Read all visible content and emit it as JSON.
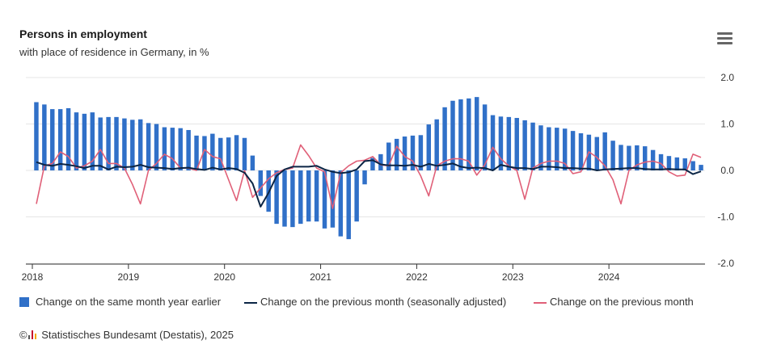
{
  "header": {
    "title": "Persons in employment",
    "subtitle": "with place of residence in Germany, in %"
  },
  "menu": {
    "icon": "hamburger-menu-icon"
  },
  "chart_data": {
    "type": "bar+line",
    "title": "Persons in employment",
    "subtitle": "with place of residence in Germany, in %",
    "ylim": [
      -2,
      2
    ],
    "yticks": [
      "2.0",
      "1.0",
      "0.0",
      "-1.0",
      "-2.0"
    ],
    "ytick_values": [
      2,
      1,
      0,
      -1,
      -2
    ],
    "xlabels": [
      "2018",
      "2019",
      "2020",
      "2021",
      "2022",
      "2023",
      "2024"
    ],
    "x_start": "2018-01",
    "months": 84,
    "series": [
      {
        "name": "Change on the same month year earlier",
        "type": "bar",
        "color": "#3070c8",
        "values": [
          1.47,
          1.42,
          1.32,
          1.32,
          1.34,
          1.25,
          1.22,
          1.25,
          1.14,
          1.15,
          1.15,
          1.12,
          1.09,
          1.1,
          1.02,
          1.0,
          0.93,
          0.92,
          0.91,
          0.87,
          0.75,
          0.74,
          0.79,
          0.7,
          0.71,
          0.76,
          0.7,
          0.32,
          -0.55,
          -0.89,
          -1.15,
          -1.21,
          -1.22,
          -1.15,
          -1.1,
          -1.1,
          -1.25,
          -1.23,
          -1.42,
          -1.48,
          -1.1,
          -0.3,
          0.27,
          0.35,
          0.6,
          0.68,
          0.73,
          0.75,
          0.76,
          0.99,
          1.1,
          1.36,
          1.5,
          1.53,
          1.55,
          1.58,
          1.42,
          1.19,
          1.16,
          1.15,
          1.13,
          1.08,
          1.03,
          0.97,
          0.93,
          0.92,
          0.9,
          0.85,
          0.8,
          0.77,
          0.72,
          0.82,
          0.64,
          0.55,
          0.53,
          0.54,
          0.52,
          0.44,
          0.35,
          0.31,
          0.28,
          0.26,
          0.2,
          0.12
        ]
      },
      {
        "name": "Change on the previous month (seasonally adjusted)",
        "type": "line",
        "color": "#0b2545",
        "values": [
          0.18,
          0.12,
          0.1,
          0.14,
          0.12,
          0.09,
          0.05,
          0.1,
          0.1,
          0.02,
          0.08,
          0.07,
          0.08,
          0.12,
          0.07,
          0.06,
          0.05,
          0.03,
          0.05,
          0.06,
          0.03,
          0.01,
          0.06,
          0.02,
          0.05,
          0.03,
          -0.05,
          -0.28,
          -0.78,
          -0.48,
          -0.12,
          0.02,
          0.08,
          0.08,
          0.08,
          0.1,
          0.02,
          -0.03,
          -0.06,
          -0.04,
          0.02,
          0.2,
          0.22,
          0.13,
          0.11,
          0.11,
          0.1,
          0.12,
          0.08,
          0.14,
          0.1,
          0.12,
          0.15,
          0.08,
          0.05,
          0.06,
          0.05,
          0.0,
          0.12,
          0.08,
          0.05,
          0.05,
          0.03,
          0.08,
          0.08,
          0.07,
          0.05,
          0.05,
          0.04,
          0.04,
          0.0,
          0.02,
          0.03,
          0.04,
          0.05,
          0.05,
          0.03,
          0.02,
          0.02,
          0.03,
          0.02,
          0.02,
          -0.08,
          -0.02
        ]
      },
      {
        "name": "Change on the previous month",
        "type": "line",
        "color": "#e06078",
        "values": [
          -0.72,
          0.1,
          0.15,
          0.4,
          0.3,
          0.05,
          0.1,
          0.2,
          0.45,
          0.15,
          0.15,
          0.05,
          -0.3,
          -0.72,
          0.0,
          0.15,
          0.35,
          0.25,
          0.05,
          0.05,
          0.0,
          0.45,
          0.3,
          0.25,
          -0.2,
          -0.65,
          0.0,
          -0.58,
          -0.38,
          -0.18,
          -0.05,
          0.02,
          0.05,
          0.55,
          0.32,
          0.05,
          -0.03,
          -0.82,
          -0.05,
          0.1,
          0.2,
          0.22,
          0.3,
          0.12,
          0.1,
          0.52,
          0.3,
          0.2,
          -0.12,
          -0.55,
          0.1,
          0.2,
          0.25,
          0.25,
          0.2,
          -0.1,
          0.12,
          0.5,
          0.25,
          0.1,
          0.0,
          -0.62,
          0.05,
          0.15,
          0.2,
          0.2,
          0.15,
          -0.07,
          -0.03,
          0.4,
          0.28,
          0.1,
          -0.2,
          -0.72,
          0.0,
          0.12,
          0.18,
          0.2,
          0.15,
          -0.03,
          -0.12,
          -0.1,
          0.35,
          0.28
        ]
      }
    ],
    "legend_position": "bottom"
  },
  "legend": {
    "items": [
      {
        "label": "Change on the same month year earlier",
        "color": "#3070c8",
        "kind": "square"
      },
      {
        "label": "Change on the previous month (seasonally adjusted)",
        "color": "#0b2545",
        "kind": "line"
      },
      {
        "label": "Change on the previous month",
        "color": "#e06078",
        "kind": "line"
      }
    ]
  },
  "credits": {
    "prefix": "©",
    "text": "Statistisches Bundesamt (Destatis), 2025"
  }
}
